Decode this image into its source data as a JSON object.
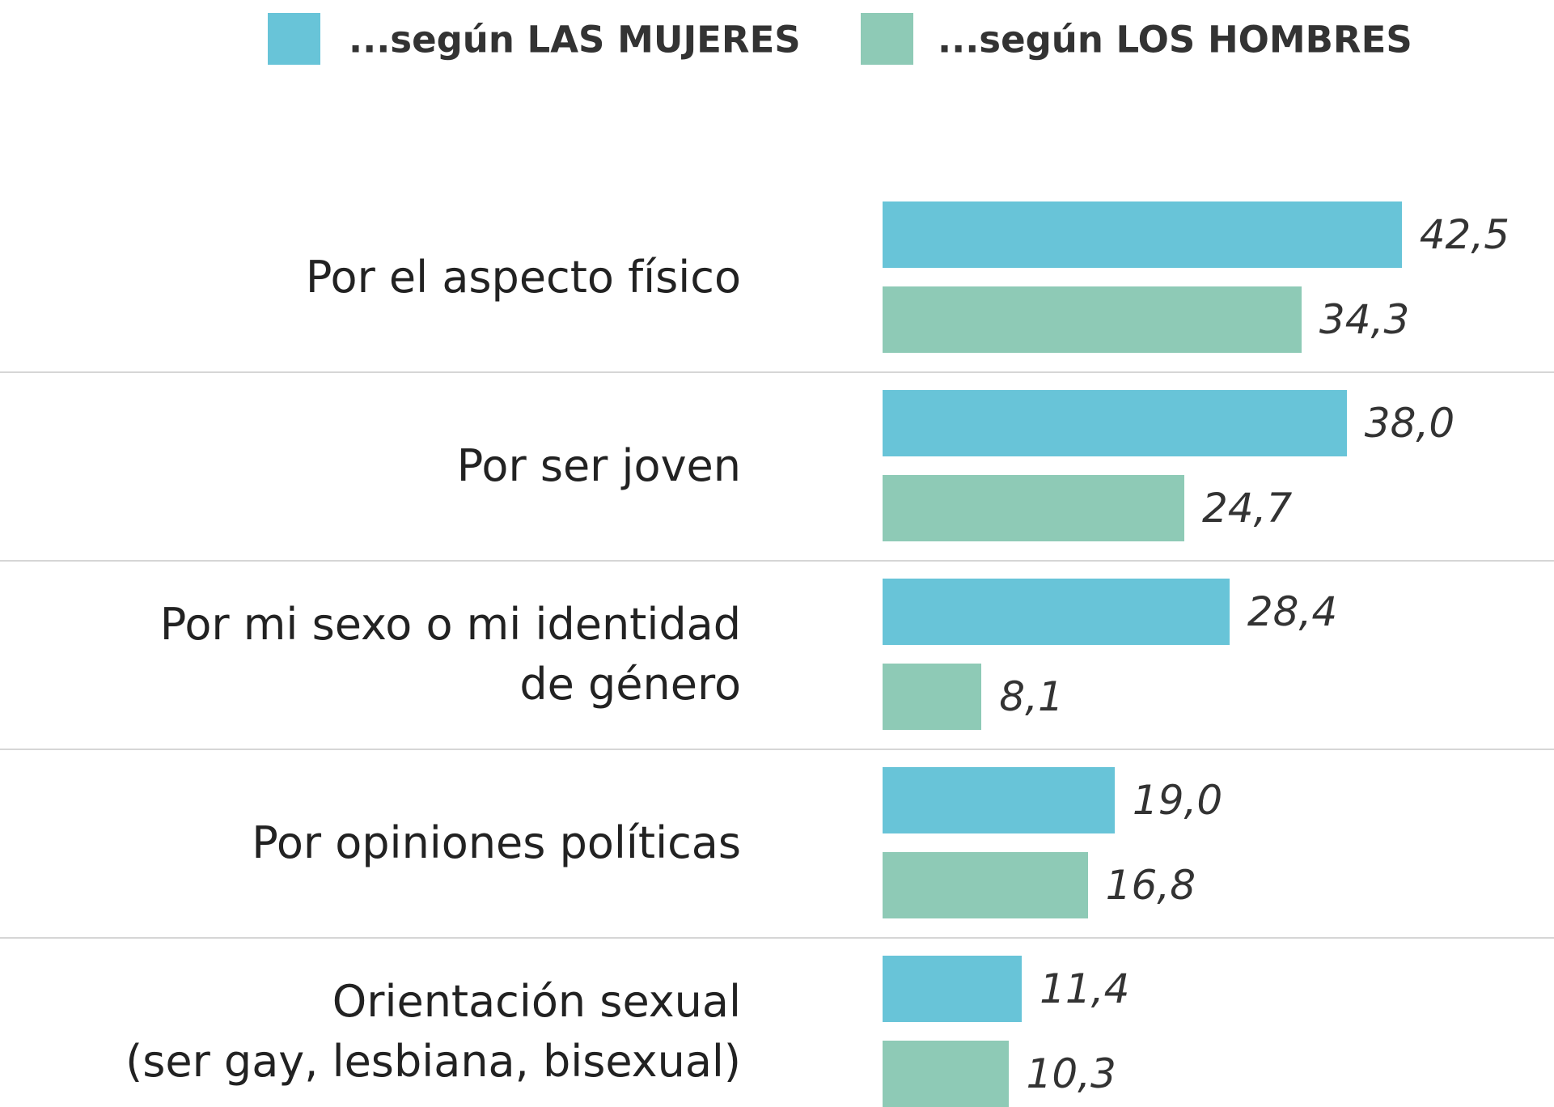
{
  "chart_data": {
    "type": "bar",
    "orientation": "horizontal",
    "categories": [
      "Por el aspecto físico",
      "Por ser joven",
      "Por mi sexo o mi identidad\nde género",
      "Por opiniones políticas",
      "Orientación sexual\n(ser gay, lesbiana, bisexual)"
    ],
    "series": [
      {
        "name": "...según LAS MUJERES",
        "color": "#68c4d8",
        "values": [
          42.5,
          38.0,
          28.4,
          19.0,
          11.4
        ],
        "value_labels": [
          "42,5",
          "38,0",
          "28,4",
          "19,0",
          "11,4"
        ]
      },
      {
        "name": "...según LOS HOMBRES",
        "color": "#8ecab6",
        "values": [
          34.3,
          24.7,
          8.1,
          16.8,
          10.3
        ],
        "value_labels": [
          "34,3",
          "24,7",
          "8,1",
          "16,8",
          "10,3"
        ]
      }
    ]
  }
}
